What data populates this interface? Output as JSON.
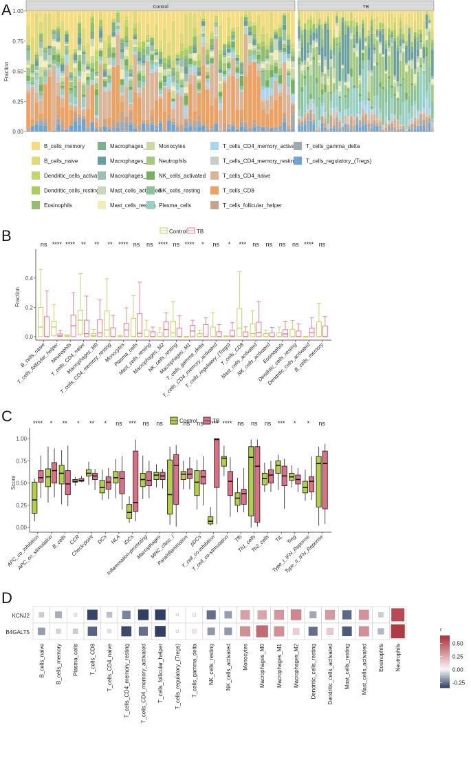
{
  "panels": {
    "A": "A",
    "B": "B",
    "C": "C",
    "D": "D"
  },
  "chart_data": [
    {
      "id": "A",
      "type": "bar",
      "subtype": "stacked-100",
      "ylabel": "Fraction",
      "ylim": [
        0,
        1
      ],
      "yticks": [
        "0.00",
        "0.25",
        "0.50",
        "0.75",
        "1.00"
      ],
      "facets": [
        "Control",
        "TB"
      ],
      "n_samples": {
        "Control": 63,
        "TB": 47
      },
      "legend_position": "bottom",
      "legend": [
        {
          "name": "B_cells_memory",
          "color": "#F6DC7E"
        },
        {
          "name": "B_cells_naive",
          "color": "#E0D97A"
        },
        {
          "name": "Dendritic_cells_activated",
          "color": "#C4D670"
        },
        {
          "name": "Dendritic_cells_resting",
          "color": "#A9CD5E"
        },
        {
          "name": "Eosinophils",
          "color": "#93BE6E"
        },
        {
          "name": "Macrophages_M0",
          "color": "#7FB18A"
        },
        {
          "name": "Macrophages_M1",
          "color": "#6A9FA2"
        },
        {
          "name": "Macrophages_M2",
          "color": "#9CC0B0"
        },
        {
          "name": "Mast_cells_activated",
          "color": "#C8D8B8"
        },
        {
          "name": "Mast_cells_resting",
          "color": "#F2EDB8"
        },
        {
          "name": "Monocytes",
          "color": "#C8DA9E"
        },
        {
          "name": "Neutrophils",
          "color": "#A3C87E"
        },
        {
          "name": "NK_cells_activated",
          "color": "#76B15E"
        },
        {
          "name": "NK_cells_resting",
          "color": "#8CC39A"
        },
        {
          "name": "Plasma_cells",
          "color": "#9ACFC6"
        },
        {
          "name": "T_cells_CD4_memory_activated",
          "color": "#A9D6F0"
        },
        {
          "name": "T_cells_CD4_memory_resting",
          "color": "#C4CDCA"
        },
        {
          "name": "T_cells_CD4_naive",
          "color": "#DBB597"
        },
        {
          "name": "T_cells_CD8",
          "color": "#EDA264"
        },
        {
          "name": "T_cells_follicular_helper",
          "color": "#C8A48A"
        },
        {
          "name": "T_cells_gamma_delta",
          "color": "#9FAAB0"
        },
        {
          "name": "T_cells_regulatory_(Tregs)",
          "color": "#6FA5D2"
        }
      ]
    },
    {
      "id": "B",
      "type": "box",
      "ylabel": "Fraction",
      "ylim": [
        -0.01,
        0.55
      ],
      "yticks": [
        "0.0",
        "0.2",
        "0.4"
      ],
      "legend": [
        {
          "name": "Control",
          "color": "#BED35E"
        },
        {
          "name": "TB",
          "color": "#E8788C"
        }
      ],
      "legend_position": "top",
      "categories": [
        "B_cells_naive",
        "T_cells_follicular_helper",
        "Neutrophils",
        "T_cells_CD4_naive",
        "Macrophages_M0",
        "T_cells_CD4_memory_resting",
        "Monocytes",
        "Plasma_cells",
        "Mast_cells_resting",
        "Macrophages_M2",
        "NK_cells_resting",
        "Macrophages_M1",
        "T_cells_gamma_delta",
        "T_cells_CD4_memory_activated",
        "T_cells_regulatory_(Tregs)",
        "T_cells_CD8",
        "Mast_cells_activated",
        "NK_cells_activated",
        "Eosinophils",
        "Dendritic_cells_resting",
        "Dendritic_cells_activated",
        "B_cells_memory"
      ],
      "significance": [
        "ns",
        "****",
        "****",
        "**",
        "**",
        "**",
        "****",
        "ns",
        "ns",
        "****",
        "ns",
        "****",
        "*",
        "ns",
        "*",
        "***",
        "ns",
        "ns",
        "ns",
        "ns",
        "****",
        "ns"
      ],
      "series": [
        {
          "name": "Control",
          "boxes": [
            [
              0,
              0,
              0.065,
              0.2,
              0.46
            ],
            [
              0,
              0.005,
              0.065,
              0.105,
              0.22
            ],
            [
              0,
              0,
              0.003,
              0.01,
              0.012
            ],
            [
              0,
              0.015,
              0.112,
              0.18,
              0.43
            ],
            [
              0,
              0,
              0.005,
              0.02,
              0.05
            ],
            [
              0,
              0,
              0.045,
              0.175,
              0.395
            ],
            [
              0,
              0,
              0.001,
              0.003,
              0.006
            ],
            [
              0,
              0,
              0,
              0.125,
              0.28
            ],
            [
              0,
              0,
              0,
              0.045,
              0.112
            ],
            [
              0,
              0,
              0,
              0.025,
              0.06
            ],
            [
              0,
              0,
              0.025,
              0.105,
              0.24
            ],
            [
              0,
              0,
              0,
              0,
              0
            ],
            [
              0,
              0,
              0,
              0.02,
              0.045
            ],
            [
              0,
              0,
              0,
              0.065,
              0.165
            ],
            [
              0,
              0,
              0,
              0.003,
              0.005
            ],
            [
              0,
              0,
              0.058,
              0.193,
              0.443
            ],
            [
              0,
              0,
              0.02,
              0.088,
              0.178
            ],
            [
              0,
              0,
              0,
              0.02,
              0.045
            ],
            [
              0,
              0,
              0,
              0.025,
              0.065
            ],
            [
              0,
              0,
              0,
              0.05,
              0.11
            ],
            [
              0,
              0,
              0,
              0,
              0
            ],
            [
              0,
              0,
              0,
              0.1,
              0.228
            ]
          ]
        },
        {
          "name": "TB",
          "boxes": [
            [
              0,
              0,
              0,
              0.136,
              0.313
            ],
            [
              0,
              0,
              0.005,
              0.018,
              0.042
            ],
            [
              0,
              0,
              0.074,
              0.147,
              0.3
            ],
            [
              0,
              0,
              0.02,
              0.112,
              0.277
            ],
            [
              0,
              0,
              0.025,
              0.116,
              0.25
            ],
            [
              0,
              0,
              0,
              0.06,
              0.145
            ],
            [
              0,
              0,
              0.045,
              0.09,
              0.197
            ],
            [
              0,
              0,
              0.022,
              0.156,
              0.372
            ],
            [
              0,
              0,
              0,
              0.033,
              0.065
            ],
            [
              0,
              0,
              0.048,
              0.1,
              0.162
            ],
            [
              0,
              0,
              0,
              0.058,
              0.142
            ],
            [
              0,
              0,
              0.038,
              0.077,
              0.112
            ],
            [
              0,
              0,
              0,
              0.082,
              0.128
            ],
            [
              0,
              0,
              0,
              0.033,
              0.082
            ],
            [
              0,
              0,
              0.003,
              0.042,
              0.095
            ],
            [
              0,
              0,
              0,
              0.032,
              0.066
            ],
            [
              0,
              0,
              0.028,
              0.098,
              0.24
            ],
            [
              0,
              0,
              0,
              0.025,
              0.063
            ],
            [
              0,
              0,
              0.018,
              0.047,
              0.105
            ],
            [
              0,
              0,
              0,
              0.038,
              0.087
            ],
            [
              0,
              0,
              0.027,
              0.058,
              0.128
            ],
            [
              0,
              0,
              0,
              0.072,
              0.137
            ]
          ]
        }
      ]
    },
    {
      "id": "C",
      "type": "box",
      "ylabel": "Score",
      "ylim": [
        -0.03,
        1.04
      ],
      "yticks": [
        "0.00",
        "0.25",
        "0.50",
        "0.75",
        "1.00"
      ],
      "legend": [
        {
          "name": "Control",
          "color": "#B6D046"
        },
        {
          "name": "TB",
          "color": "#DF6F84"
        }
      ],
      "legend_position": "top",
      "categories": [
        "APC_co_inhibition",
        "APC_co_stimulation",
        "B_cells",
        "CCR",
        "Check-point",
        "DCs",
        "HLA",
        "iDCs",
        "Inflammation-promoting",
        "Macrophages",
        "MHC_class_I",
        "Parainflammation",
        "pDCs",
        "T_cell_co-inhibition",
        "T_cell_co-stimulation",
        "Tfh",
        "Th1_cells",
        "Th2_cells",
        "TIL",
        "Treg",
        "Type_I_IFN_Reponse",
        "Type_II_IFN_Reponse"
      ],
      "significance": [
        "****",
        "*",
        "**",
        "*",
        "**",
        "*",
        "ns",
        "***",
        "ns",
        "ns",
        "*",
        "ns",
        "ns",
        "****",
        "****",
        "ns",
        "ns",
        "ns",
        "***",
        "*",
        "*",
        "ns"
      ],
      "series": [
        {
          "name": "Control",
          "boxes": [
            [
              0.07,
              0.16,
              0.31,
              0.51,
              0.55
            ],
            [
              0.28,
              0.46,
              0.57,
              0.66,
              0.91
            ],
            [
              0.26,
              0.49,
              0.61,
              0.7,
              0.87
            ],
            [
              0.47,
              0.51,
              0.52,
              0.54,
              0.57
            ],
            [
              0.48,
              0.58,
              0.61,
              0.65,
              0.74
            ],
            [
              0.31,
              0.39,
              0.45,
              0.53,
              0.65
            ],
            [
              0.33,
              0.5,
              0.56,
              0.63,
              0.77
            ],
            [
              0.05,
              0.1,
              0.17,
              0.26,
              0.35
            ],
            [
              0.32,
              0.46,
              0.54,
              0.61,
              0.81
            ],
            [
              0.45,
              0.54,
              0.59,
              0.62,
              0.71
            ],
            [
              0.03,
              0.15,
              0.37,
              0.76,
              0.91
            ],
            [
              0.43,
              0.54,
              0.6,
              0.63,
              0.75
            ],
            [
              0.2,
              0.36,
              0.51,
              0.64,
              0.76
            ],
            [
              0.02,
              0.04,
              0.07,
              0.12,
              0.23
            ],
            [
              0.58,
              0.69,
              0.78,
              0.8,
              0.92
            ],
            [
              0.17,
              0.25,
              0.33,
              0.39,
              0.56
            ],
            [
              0.0,
              0.13,
              0.79,
              0.91,
              0.99
            ],
            [
              0.4,
              0.48,
              0.55,
              0.61,
              0.73
            ],
            [
              0.42,
              0.61,
              0.7,
              0.75,
              0.82
            ],
            [
              0.45,
              0.53,
              0.57,
              0.61,
              0.7
            ],
            [
              0.3,
              0.39,
              0.45,
              0.52,
              0.65
            ],
            [
              0.02,
              0.23,
              0.72,
              0.8,
              0.91
            ]
          ]
        },
        {
          "name": "TB",
          "boxes": [
            [
              0.33,
              0.51,
              0.56,
              0.64,
              0.81
            ],
            [
              0.34,
              0.5,
              0.64,
              0.73,
              0.89
            ],
            [
              0.24,
              0.37,
              0.49,
              0.64,
              0.92
            ],
            [
              0.51,
              0.52,
              0.53,
              0.55,
              0.58
            ],
            [
              0.42,
              0.54,
              0.58,
              0.61,
              0.66
            ],
            [
              0.32,
              0.43,
              0.51,
              0.57,
              0.67
            ],
            [
              0.2,
              0.38,
              0.55,
              0.63,
              0.8
            ],
            [
              0.07,
              0.18,
              0.28,
              0.86,
              0.99
            ],
            [
              0.33,
              0.47,
              0.53,
              0.63,
              0.75
            ],
            [
              0.44,
              0.54,
              0.58,
              0.62,
              0.66
            ],
            [
              0.01,
              0.26,
              0.7,
              0.82,
              0.93
            ],
            [
              0.43,
              0.55,
              0.6,
              0.66,
              0.79
            ],
            [
              0.25,
              0.49,
              0.57,
              0.64,
              0.8
            ],
            [
              0.04,
              0.45,
              0.99,
              1.0,
              1.0
            ],
            [
              0.12,
              0.36,
              0.52,
              0.63,
              0.79
            ],
            [
              0.17,
              0.26,
              0.38,
              0.43,
              0.67
            ],
            [
              0.01,
              0.06,
              0.69,
              0.91,
              0.99
            ],
            [
              0.4,
              0.5,
              0.59,
              0.65,
              0.75
            ],
            [
              0.21,
              0.47,
              0.58,
              0.69,
              0.77
            ],
            [
              0.4,
              0.49,
              0.54,
              0.59,
              0.67
            ],
            [
              0.31,
              0.4,
              0.52,
              0.57,
              0.8
            ],
            [
              0.04,
              0.21,
              0.72,
              0.86,
              0.94
            ]
          ]
        }
      ]
    },
    {
      "id": "D",
      "type": "heatmap",
      "legend_title": "r",
      "legend_position": "right",
      "color_range": [
        -0.35,
        0.65
      ],
      "legend_ticks": [
        "0.50",
        "0.25",
        "0.00",
        "-0.25"
      ],
      "legend_tick_values": [
        0.5,
        0.25,
        0,
        -0.25
      ],
      "rows": [
        "KCNJ2",
        "B4GALT5"
      ],
      "columns": [
        "B_cells_naive",
        "B_cells_memory",
        "Plasma_cells",
        "T_cells_CD8",
        "T_cells_CD4_naive",
        "T_cells_CD4_memory_resting",
        "T_cells_CD4_memory_activated",
        "T_cells_follicular_helper",
        "T_cells_regulatory_(Tregs)",
        "T_cells_gamma_delta",
        "NK_cells_resting",
        "NK_cells_activated",
        "Monocytes",
        "Macrophages_M0",
        "Macrophages_M1",
        "Macrophages_M2",
        "Dendritic_cells_resting",
        "Dendritic_cells_activated",
        "Mast_cells_resting",
        "Mast_cells_activated",
        "Eosinophils",
        "Neutrophils"
      ],
      "values": [
        [
          -0.08,
          -0.14,
          -0.03,
          -0.34,
          -0.1,
          -0.22,
          -0.36,
          -0.36,
          0.02,
          0.03,
          -0.26,
          -0.17,
          0.28,
          0.26,
          0.31,
          0.36,
          -0.15,
          0.3,
          -0.27,
          0.32,
          -0.08,
          0.55
        ],
        [
          -0.17,
          -0.07,
          -0.08,
          -0.28,
          -0.04,
          -0.33,
          -0.26,
          -0.37,
          0.02,
          0.06,
          -0.18,
          -0.18,
          0.33,
          0.45,
          0.33,
          0.13,
          -0.26,
          0.15,
          -0.3,
          0.33,
          -0.12,
          0.62
        ]
      ]
    }
  ]
}
